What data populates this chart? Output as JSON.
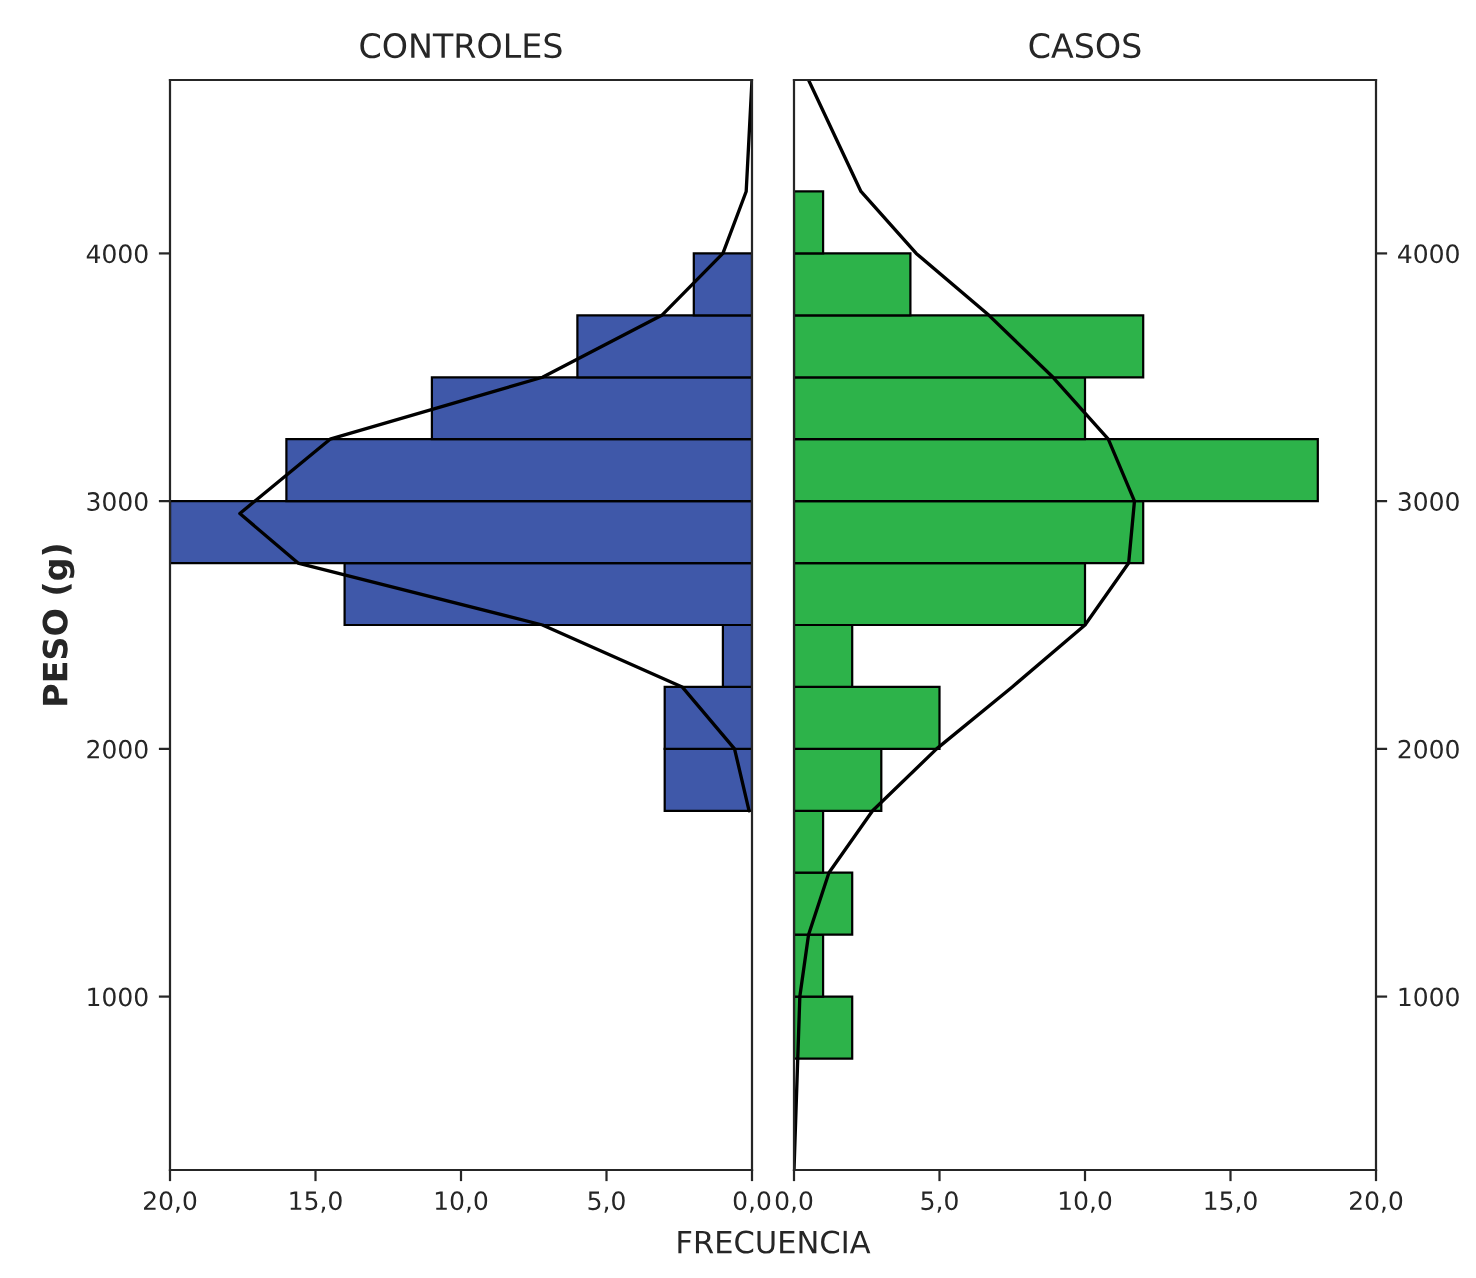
{
  "chart_data": [
    {
      "type": "histogram",
      "orientation": "horizontal",
      "title": "CONTROLES",
      "xlabel": "FRECUENCIA",
      "ylabel": "PESO (g)",
      "bins": [
        750,
        1000,
        1250,
        1500,
        1750,
        2000,
        2250,
        2500,
        2750,
        3000,
        3250,
        3500,
        3750,
        4000,
        4250
      ],
      "series": [
        {
          "color": "#3f58a9",
          "values": [
            0,
            0,
            0,
            0,
            3,
            3,
            1,
            14,
            20,
            16,
            11,
            6,
            2,
            0
          ]
        },
        {
          "type": "line",
          "color": "#000000",
          "x": [
            1750,
            2000,
            2250,
            2500,
            2750,
            2950,
            3250,
            3500,
            3750,
            4000,
            4250,
            4700
          ],
          "values": [
            0.1,
            0.6,
            2.4,
            7.2,
            15.6,
            17.6,
            14.5,
            7.2,
            3.1,
            1.0,
            0.2,
            0.0
          ]
        }
      ],
      "xlim": [
        20,
        0
      ],
      "xticks": [
        {
          "value": 20,
          "label": "20,0"
        },
        {
          "value": 15,
          "label": "15,0"
        },
        {
          "value": 10,
          "label": "10,0"
        },
        {
          "value": 5,
          "label": "5,0"
        },
        {
          "value": 0,
          "label": "0,0"
        }
      ],
      "ylim": [
        300,
        4700
      ],
      "yticks": [
        1000,
        2000,
        3000,
        4000
      ],
      "grid": false,
      "legend": false
    },
    {
      "type": "histogram",
      "orientation": "horizontal",
      "title": "CASOS",
      "bins": [
        750,
        1000,
        1250,
        1500,
        1750,
        2000,
        2250,
        2500,
        2750,
        3000,
        3250,
        3500,
        3750,
        4000,
        4250
      ],
      "series": [
        {
          "color": "#2db34a",
          "values": [
            2,
            1,
            2,
            1,
            3,
            5,
            2,
            10,
            12,
            18,
            10,
            12,
            4,
            1
          ]
        },
        {
          "type": "line",
          "color": "#000000",
          "x": [
            300,
            1000,
            1250,
            1500,
            1750,
            2000,
            2250,
            2500,
            2750,
            3000,
            3250,
            3500,
            3750,
            4000,
            4250,
            4700
          ],
          "values": [
            0.0,
            0.2,
            0.5,
            1.2,
            2.7,
            4.9,
            7.5,
            10.0,
            11.5,
            11.7,
            10.8,
            8.9,
            6.7,
            4.2,
            2.3,
            0.5
          ]
        }
      ],
      "xlim": [
        0,
        20
      ],
      "xticks": [
        {
          "value": 0,
          "label": "0,0"
        },
        {
          "value": 5,
          "label": "5,0"
        },
        {
          "value": 10,
          "label": "10,0"
        },
        {
          "value": 15,
          "label": "15,0"
        },
        {
          "value": 20,
          "label": "20,0"
        }
      ],
      "ylim": [
        300,
        4700
      ],
      "yticks": [
        1000,
        2000,
        3000,
        4000
      ],
      "grid": false,
      "legend": false
    }
  ]
}
